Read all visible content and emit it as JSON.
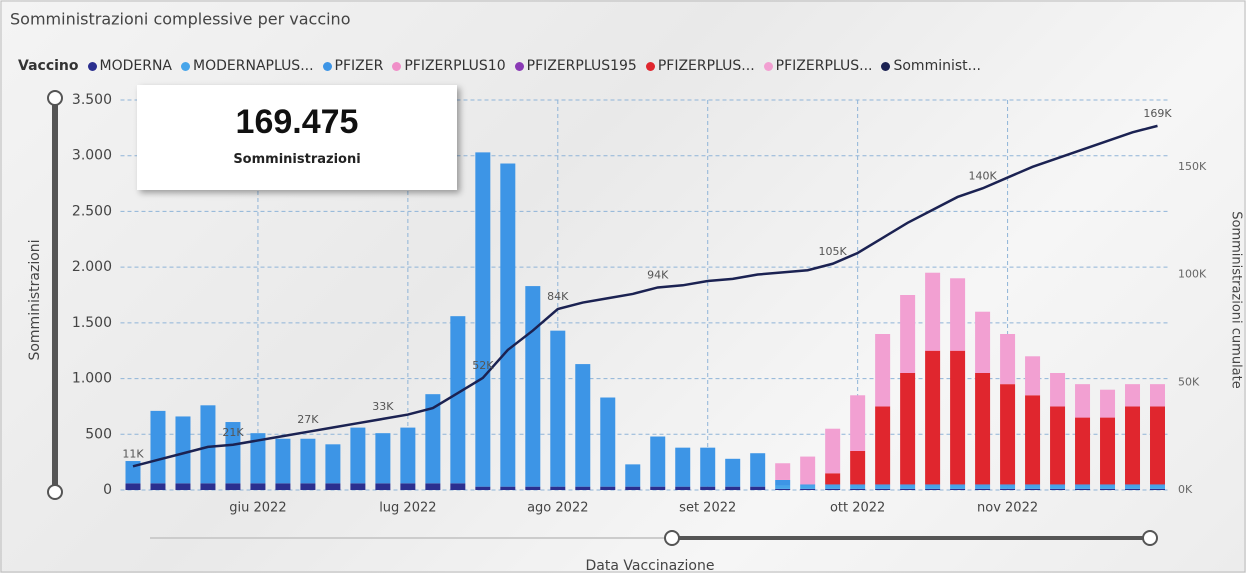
{
  "chart_data": {
    "type": "bar",
    "title": "Somministrazioni complessive per vaccino",
    "legend_title": "Vaccino",
    "x_label": "Data Vaccinazione",
    "y_label": "Somministrazioni",
    "y2_label": "Somministrazioni cumulate",
    "categories": [
      null,
      null,
      null,
      null,
      null,
      "giu 2022",
      null,
      null,
      null,
      null,
      null,
      "lug 2022",
      null,
      null,
      null,
      null,
      null,
      "ago 2022",
      null,
      null,
      null,
      null,
      null,
      "set 2022",
      null,
      null,
      null,
      null,
      null,
      "ott 2022",
      null,
      null,
      null,
      null,
      null,
      "nov 2022",
      null,
      null,
      null,
      null,
      null,
      null
    ],
    "ylim": [
      0,
      3500
    ],
    "yticks": [
      {
        "value": 0,
        "label": "0"
      },
      {
        "value": 500,
        "label": "500"
      },
      {
        "value": 1000,
        "label": "1.000"
      },
      {
        "value": 1500,
        "label": "1.500"
      },
      {
        "value": 2000,
        "label": "2.000"
      },
      {
        "value": 2500,
        "label": "2.500"
      },
      {
        "value": 3000,
        "label": "3.000"
      },
      {
        "value": 3500,
        "label": "3.500"
      }
    ],
    "y2lim": [
      0,
      181000
    ],
    "y2ticks": [
      {
        "value": 0,
        "label": "0K"
      },
      {
        "value": 50000,
        "label": "50K"
      },
      {
        "value": 100000,
        "label": "100K"
      },
      {
        "value": 150000,
        "label": "150K"
      }
    ],
    "grid": true,
    "series": [
      {
        "name": "MODERNA",
        "color": "#2b2f8f",
        "values": [
          60,
          60,
          60,
          60,
          60,
          60,
          60,
          60,
          60,
          60,
          60,
          60,
          60,
          60,
          30,
          30,
          30,
          30,
          30,
          30,
          30,
          30,
          30,
          30,
          30,
          30,
          10,
          10,
          10,
          10,
          10,
          10,
          10,
          10,
          10,
          10,
          10,
          10,
          10,
          10,
          10,
          10
        ]
      },
      {
        "name": "MODERNAPLUS...",
        "color": "#47a5ea",
        "values": [
          0,
          0,
          0,
          0,
          0,
          0,
          0,
          0,
          0,
          0,
          0,
          0,
          0,
          0,
          0,
          0,
          0,
          0,
          0,
          0,
          0,
          0,
          0,
          0,
          0,
          0,
          30,
          30,
          30,
          30,
          30,
          30,
          30,
          30,
          30,
          30,
          30,
          30,
          30,
          30,
          30,
          30
        ]
      },
      {
        "name": "PFIZER",
        "color": "#3d95e6",
        "values": [
          200,
          650,
          600,
          700,
          550,
          450,
          400,
          400,
          350,
          500,
          450,
          500,
          800,
          1500,
          3000,
          2900,
          1800,
          1400,
          1100,
          800,
          200,
          450,
          350,
          350,
          250,
          300,
          50,
          10,
          10,
          10,
          10,
          10,
          10,
          10,
          10,
          10,
          10,
          10,
          10,
          10,
          10,
          10
        ]
      },
      {
        "name": "PFIZERPLUS10",
        "color": "#f08fc8",
        "values": [
          0,
          0,
          0,
          0,
          0,
          0,
          0,
          0,
          0,
          0,
          0,
          0,
          0,
          0,
          0,
          0,
          0,
          0,
          0,
          0,
          0,
          0,
          0,
          0,
          0,
          0,
          0,
          0,
          0,
          0,
          0,
          0,
          0,
          0,
          0,
          0,
          0,
          0,
          0,
          0,
          0,
          0
        ]
      },
      {
        "name": "PFIZERPLUS195",
        "color": "#8a3ab5",
        "values": [
          0,
          0,
          0,
          0,
          0,
          0,
          0,
          0,
          0,
          0,
          0,
          0,
          0,
          0,
          0,
          0,
          0,
          0,
          0,
          0,
          0,
          0,
          0,
          0,
          0,
          0,
          0,
          0,
          0,
          0,
          0,
          0,
          0,
          0,
          0,
          0,
          0,
          0,
          0,
          0,
          0,
          0
        ]
      },
      {
        "name": "PFIZERPLUS...",
        "color": "#e0262e",
        "values": [
          0,
          0,
          0,
          0,
          0,
          0,
          0,
          0,
          0,
          0,
          0,
          0,
          0,
          0,
          0,
          0,
          0,
          0,
          0,
          0,
          0,
          0,
          0,
          0,
          0,
          0,
          0,
          0,
          100,
          300,
          700,
          1000,
          1200,
          1200,
          1000,
          900,
          800,
          700,
          600,
          600,
          700,
          700
        ]
      },
      {
        "name": "PFIZERPLUS...",
        "color": "#f2a0d2",
        "values": [
          0,
          0,
          0,
          0,
          0,
          0,
          0,
          0,
          0,
          0,
          0,
          0,
          0,
          0,
          0,
          0,
          0,
          0,
          0,
          0,
          0,
          0,
          0,
          0,
          0,
          0,
          150,
          250,
          400,
          500,
          650,
          700,
          700,
          650,
          550,
          450,
          350,
          300,
          300,
          250,
          200,
          200
        ]
      },
      {
        "name": "Somminist...",
        "color": "#1b2252",
        "axis": "y2",
        "values": [
          11000,
          14000,
          17000,
          20000,
          21000,
          23000,
          25000,
          27000,
          29000,
          31000,
          33000,
          35000,
          38000,
          45000,
          52000,
          65000,
          74000,
          84000,
          87000,
          89000,
          91000,
          94000,
          95000,
          97000,
          98000,
          100000,
          101000,
          102000,
          105000,
          110000,
          117000,
          124000,
          130000,
          136000,
          140000,
          145000,
          150000,
          154000,
          158000,
          162000,
          166000,
          169000
        ],
        "value_labels": [
          "11K",
          null,
          null,
          null,
          "21K",
          null,
          null,
          "27K",
          null,
          null,
          "33K",
          null,
          null,
          null,
          "52K",
          null,
          null,
          "84K",
          null,
          null,
          null,
          "94K",
          null,
          null,
          null,
          null,
          null,
          null,
          "105K",
          null,
          null,
          null,
          null,
          null,
          "140K",
          null,
          null,
          null,
          null,
          null,
          null,
          "169K"
        ]
      }
    ]
  },
  "card": {
    "value": "169.475",
    "label": "Somministrazioni"
  }
}
